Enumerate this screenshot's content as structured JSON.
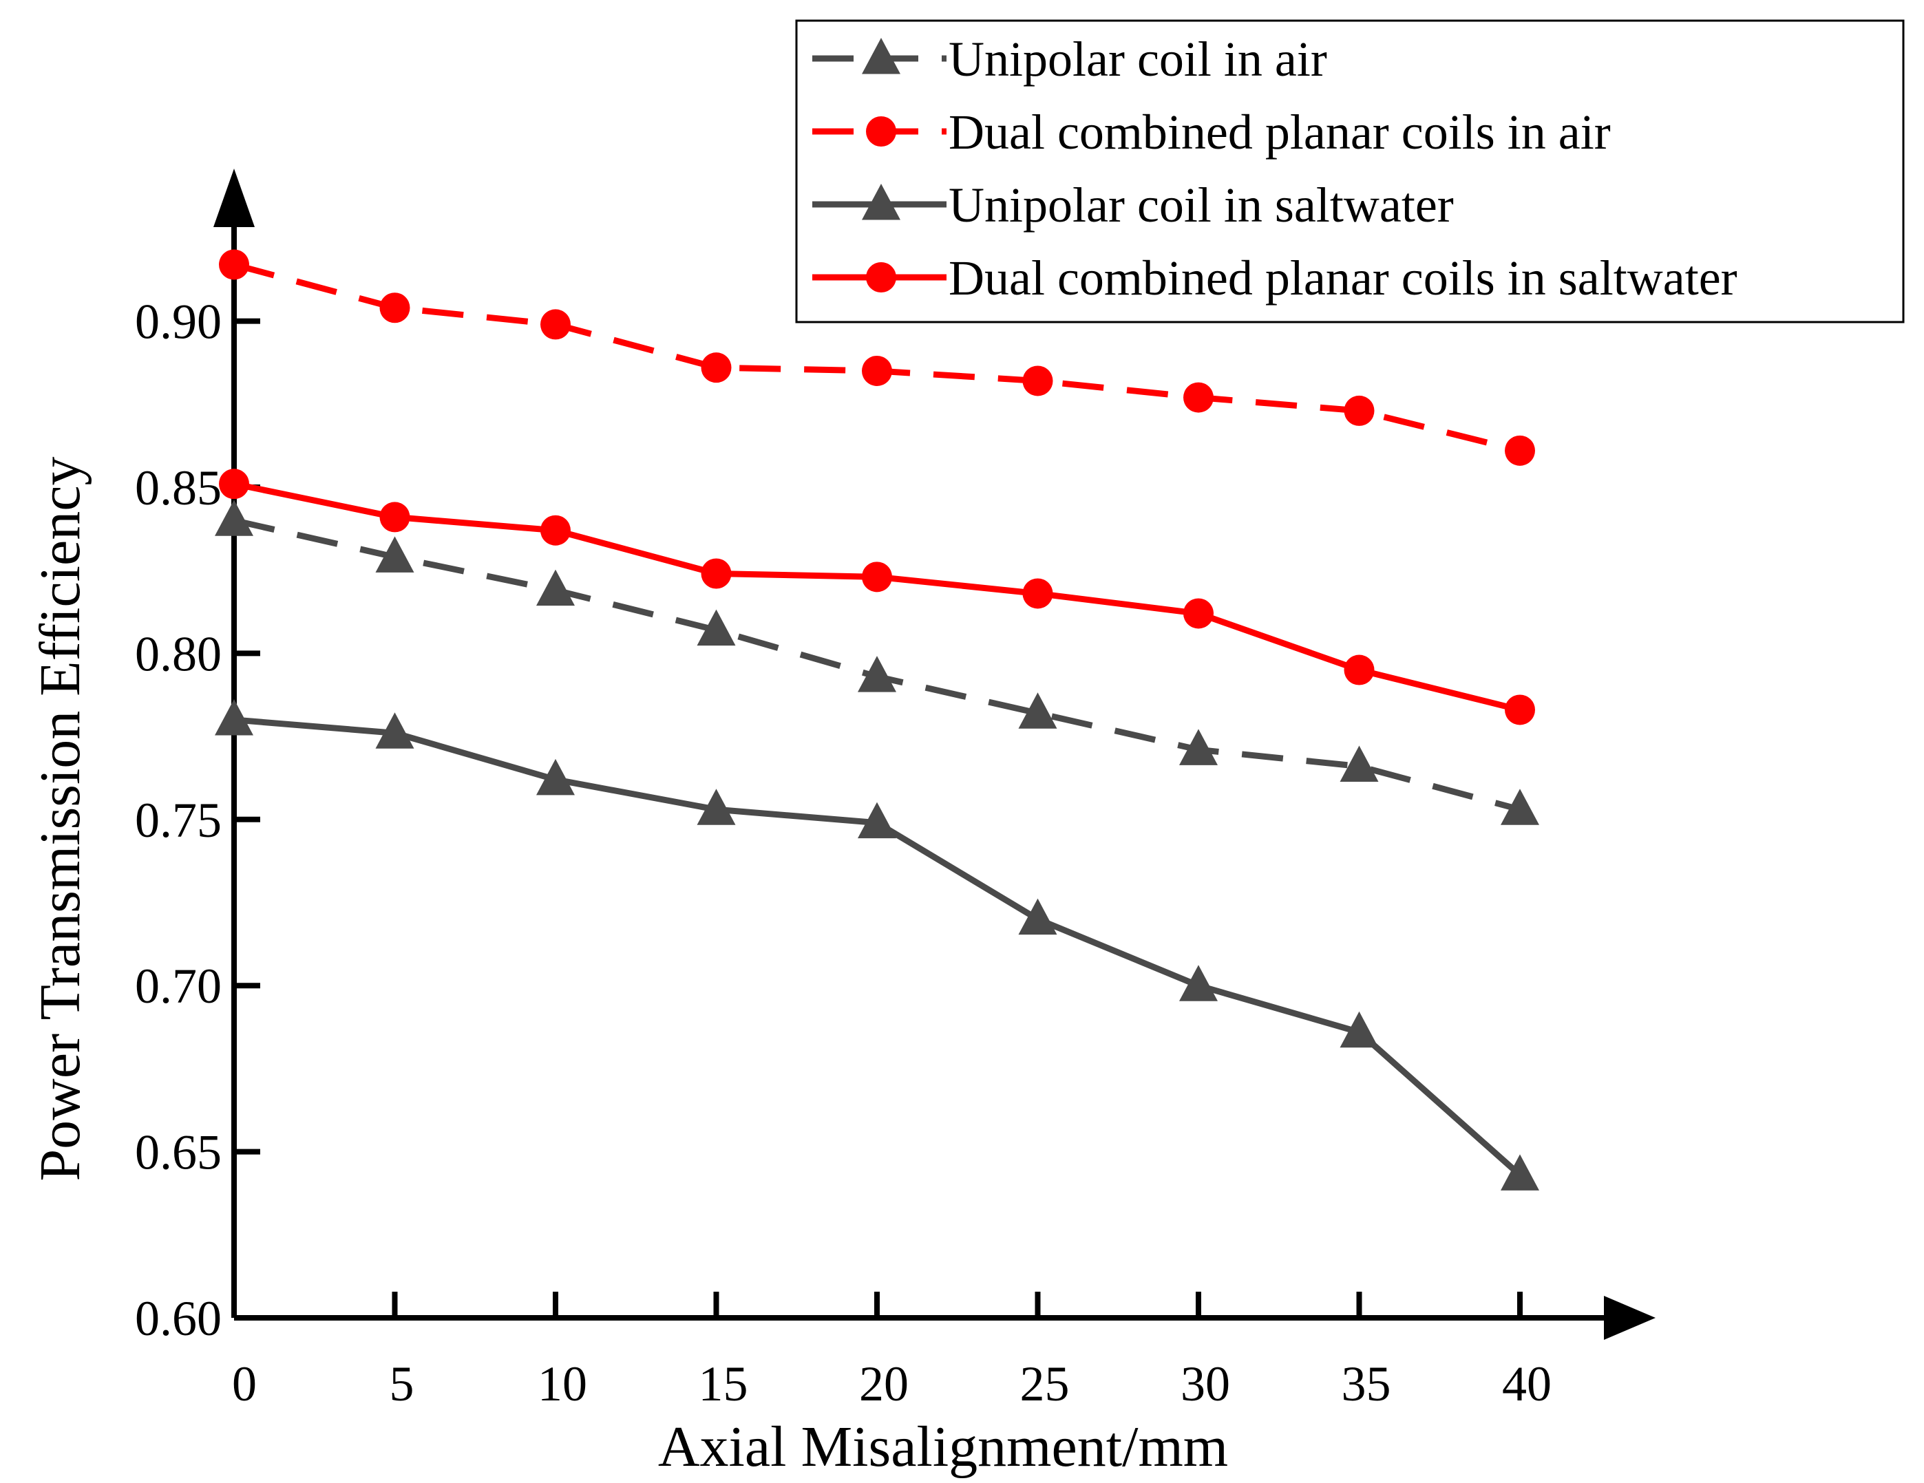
{
  "chart_data": {
    "type": "line",
    "title": "",
    "xlabel": "Axial Misalignment/mm",
    "ylabel": "Power Transmission Efficiency",
    "x": [
      0,
      5,
      10,
      15,
      20,
      25,
      30,
      35,
      40
    ],
    "xlim": [
      0,
      40
    ],
    "ylim": [
      0.6,
      0.92
    ],
    "x_ticks": [
      "0",
      "5",
      "10",
      "15",
      "20",
      "25",
      "30",
      "35",
      "40"
    ],
    "y_ticks": [
      "0.60",
      "0.65",
      "0.70",
      "0.75",
      "0.80",
      "0.85",
      "0.90"
    ],
    "grid": false,
    "legend_position": "top-right",
    "series": [
      {
        "name": "Unipolar coil in air",
        "color": "#4a4a4a",
        "line_style": "dashed",
        "marker": "triangle",
        "values": [
          0.84,
          0.829,
          0.819,
          0.807,
          0.793,
          0.782,
          0.771,
          0.766,
          0.753
        ]
      },
      {
        "name": "Dual combined planar coils in air",
        "color": "#ff0000",
        "line_style": "dashed",
        "marker": "circle",
        "values": [
          0.917,
          0.904,
          0.899,
          0.886,
          0.885,
          0.882,
          0.877,
          0.873,
          0.861
        ]
      },
      {
        "name": "Unipolar coil in saltwater",
        "color": "#4a4a4a",
        "line_style": "solid",
        "marker": "triangle",
        "values": [
          0.78,
          0.776,
          0.762,
          0.753,
          0.749,
          0.72,
          0.7,
          0.686,
          0.643
        ]
      },
      {
        "name": "Dual combined planar coils in saltwater",
        "color": "#ff0000",
        "line_style": "solid",
        "marker": "circle",
        "values": [
          0.851,
          0.841,
          0.837,
          0.824,
          0.823,
          0.818,
          0.812,
          0.795,
          0.783
        ]
      }
    ]
  }
}
